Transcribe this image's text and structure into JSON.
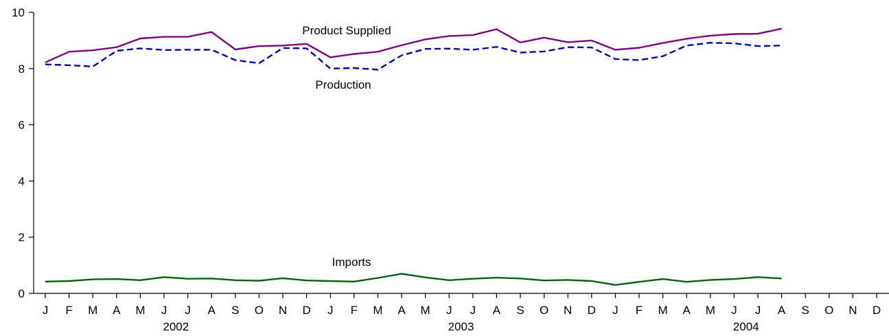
{
  "chart_data": {
    "type": "line",
    "title": "",
    "xlabel": "",
    "ylabel": "",
    "ylim": [
      0,
      10
    ],
    "yticks": [
      0,
      2,
      4,
      6,
      8,
      10
    ],
    "month_labels": [
      "J",
      "F",
      "M",
      "A",
      "M",
      "J",
      "J",
      "A",
      "S",
      "O",
      "N",
      "D",
      "J",
      "F",
      "M",
      "A",
      "M",
      "J",
      "J",
      "A",
      "S",
      "O",
      "N",
      "D",
      "J",
      "F",
      "M",
      "A",
      "M",
      "J",
      "J",
      "A",
      "S",
      "O",
      "N",
      "D"
    ],
    "year_labels": [
      {
        "label": "2002",
        "month_index": 5.5
      },
      {
        "label": "2003",
        "month_index": 17.5
      },
      {
        "label": "2004",
        "month_index": 29.5
      }
    ],
    "series": [
      {
        "name": "Product Supplied",
        "color": "#800080",
        "style": "solid",
        "values": [
          8.22,
          8.6,
          8.65,
          8.76,
          9.07,
          9.13,
          9.13,
          9.3,
          8.68,
          8.8,
          8.82,
          8.88,
          8.4,
          8.52,
          8.6,
          8.83,
          9.04,
          9.16,
          9.19,
          9.4,
          8.93,
          9.1,
          8.94,
          9.0,
          8.67,
          8.74,
          8.91,
          9.06,
          9.17,
          9.23,
          9.24,
          9.42
        ]
      },
      {
        "name": "Production",
        "color": "#0000b4",
        "style": "dashed",
        "values": [
          8.15,
          8.12,
          8.07,
          8.63,
          8.72,
          8.66,
          8.67,
          8.67,
          8.3,
          8.19,
          8.73,
          8.72,
          8.0,
          8.02,
          7.96,
          8.47,
          8.7,
          8.71,
          8.67,
          8.77,
          8.57,
          8.61,
          8.76,
          8.75,
          8.34,
          8.3,
          8.44,
          8.82,
          8.92,
          8.9,
          8.8,
          8.82
        ]
      },
      {
        "name": "Imports",
        "color": "#006400",
        "style": "solid",
        "values": [
          0.42,
          0.44,
          0.5,
          0.51,
          0.47,
          0.58,
          0.52,
          0.53,
          0.47,
          0.45,
          0.54,
          0.46,
          0.44,
          0.42,
          0.55,
          0.7,
          0.57,
          0.47,
          0.52,
          0.56,
          0.53,
          0.46,
          0.48,
          0.44,
          0.3,
          0.41,
          0.51,
          0.41,
          0.48,
          0.51,
          0.58,
          0.53
        ]
      }
    ]
  }
}
